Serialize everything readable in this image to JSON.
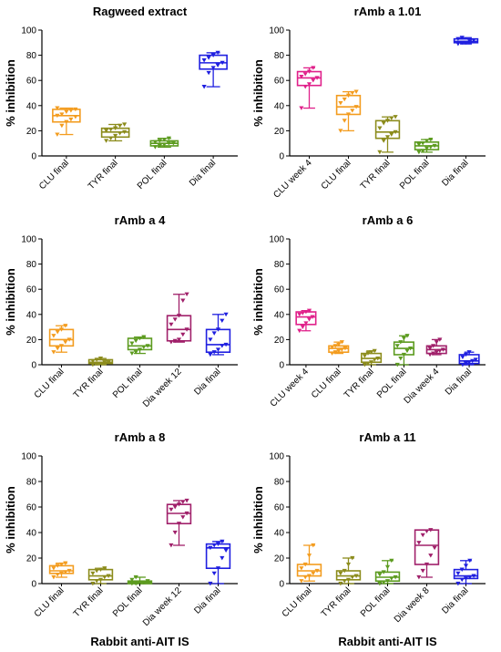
{
  "chart_data": [
    {
      "type": "box",
      "title": "Ragweed extract",
      "ylabel": "% inhibition",
      "xlabel": "",
      "ylim": [
        0,
        100
      ],
      "yticks": [
        0,
        20,
        40,
        60,
        80,
        100
      ],
      "categories": [
        "CLU final",
        "TYR final",
        "POL final",
        "Dia final"
      ],
      "colors": [
        "#F39C1F",
        "#8C8C1C",
        "#5C9B1F",
        "#1F1FE0"
      ],
      "boxes": [
        {
          "min": 17,
          "q1": 27,
          "median": 32,
          "q3": 37,
          "max": 38,
          "points": [
            17,
            24,
            27,
            29,
            31,
            32,
            33,
            35,
            36,
            37,
            38
          ]
        },
        {
          "min": 12,
          "q1": 15,
          "median": 19,
          "q3": 22,
          "max": 25,
          "points": [
            12,
            14,
            16,
            18,
            19,
            20,
            21,
            22,
            24,
            25
          ]
        },
        {
          "min": 7,
          "q1": 8,
          "median": 10,
          "q3": 12,
          "max": 14,
          "points": [
            7,
            8,
            9,
            10,
            10,
            11,
            12,
            13,
            14
          ]
        },
        {
          "min": 55,
          "q1": 69,
          "median": 74,
          "q3": 80,
          "max": 82,
          "points": [
            55,
            66,
            70,
            72,
            74,
            76,
            78,
            80,
            82
          ]
        }
      ]
    },
    {
      "type": "box",
      "title": "rAmb a 1.01",
      "ylabel": "% inhibition",
      "xlabel": "",
      "ylim": [
        0,
        100
      ],
      "yticks": [
        0,
        20,
        40,
        60,
        80,
        100
      ],
      "categories": [
        "CLU week 4",
        "CLU final",
        "TYR final",
        "POL final",
        "Dia final"
      ],
      "colors": [
        "#E0208A",
        "#F39C1F",
        "#8C8C1C",
        "#5C9B1F",
        "#1F1FE0"
      ],
      "boxes": [
        {
          "min": 38,
          "q1": 56,
          "median": 62,
          "q3": 67,
          "max": 70,
          "points": [
            38,
            55,
            57,
            60,
            62,
            63,
            65,
            67,
            70
          ]
        },
        {
          "min": 20,
          "q1": 33,
          "median": 39,
          "q3": 48,
          "max": 51,
          "points": [
            20,
            28,
            33,
            36,
            39,
            42,
            45,
            48,
            50,
            51
          ]
        },
        {
          "min": 3,
          "q1": 14,
          "median": 19,
          "q3": 28,
          "max": 31,
          "points": [
            3,
            12,
            15,
            17,
            19,
            22,
            26,
            28,
            30,
            31
          ]
        },
        {
          "min": 3,
          "q1": 5,
          "median": 8,
          "q3": 11,
          "max": 13,
          "points": [
            3,
            4,
            6,
            7,
            8,
            9,
            10,
            12,
            13
          ]
        },
        {
          "min": 89,
          "q1": 90,
          "median": 91,
          "q3": 93,
          "max": 94,
          "points": [
            89,
            90,
            90,
            91,
            92,
            93,
            94
          ]
        }
      ]
    },
    {
      "type": "box",
      "title": "rAmb a 4",
      "ylabel": "% inhibition",
      "xlabel": "",
      "ylim": [
        0,
        100
      ],
      "yticks": [
        0,
        20,
        40,
        60,
        80,
        100
      ],
      "categories": [
        "CLU final",
        "TYR final",
        "POL final",
        "Dia week 12",
        "Dia final"
      ],
      "colors": [
        "#F39C1F",
        "#8C8C1C",
        "#5C9B1F",
        "#A0206A",
        "#1F1FE0"
      ],
      "boxes": [
        {
          "min": 10,
          "q1": 15,
          "median": 20,
          "q3": 28,
          "max": 31,
          "points": [
            10,
            13,
            15,
            18,
            20,
            23,
            26,
            28,
            31
          ]
        },
        {
          "min": 0,
          "q1": 1,
          "median": 2,
          "q3": 4,
          "max": 5,
          "points": [
            0,
            1,
            1,
            2,
            2,
            3,
            4,
            5
          ]
        },
        {
          "min": 9,
          "q1": 12,
          "median": 15,
          "q3": 21,
          "max": 22,
          "points": [
            9,
            10,
            12,
            14,
            15,
            17,
            19,
            21,
            22
          ]
        },
        {
          "min": 18,
          "q1": 19,
          "median": 28,
          "q3": 39,
          "max": 56,
          "points": [
            18,
            19,
            20,
            24,
            28,
            32,
            36,
            39,
            51,
            56
          ]
        },
        {
          "min": 8,
          "q1": 10,
          "median": 16,
          "q3": 28,
          "max": 40,
          "points": [
            8,
            10,
            12,
            15,
            16,
            20,
            25,
            28,
            35,
            40
          ]
        }
      ]
    },
    {
      "type": "box",
      "title": "rAmb a 6",
      "ylabel": "% inhibition",
      "xlabel": "",
      "ylim": [
        0,
        100
      ],
      "yticks": [
        0,
        20,
        40,
        60,
        80,
        100
      ],
      "categories": [
        "CLU week 4",
        "CLU final",
        "TYR final",
        "POL final",
        "Dia week 4",
        "Dia final"
      ],
      "colors": [
        "#E0208A",
        "#F39C1F",
        "#8C8C1C",
        "#5C9B1F",
        "#A0206A",
        "#1F1FE0"
      ],
      "boxes": [
        {
          "min": 27,
          "q1": 32,
          "median": 38,
          "q3": 42,
          "max": 43,
          "points": [
            27,
            30,
            33,
            36,
            38,
            40,
            41,
            42,
            43
          ]
        },
        {
          "min": 9,
          "q1": 10,
          "median": 13,
          "q3": 15,
          "max": 18,
          "points": [
            9,
            10,
            11,
            12,
            13,
            14,
            15,
            16,
            18
          ]
        },
        {
          "min": 0,
          "q1": 2,
          "median": 5,
          "q3": 9,
          "max": 11,
          "points": [
            0,
            1,
            2,
            4,
            5,
            7,
            9,
            10,
            11
          ]
        },
        {
          "min": 0,
          "q1": 8,
          "median": 13,
          "q3": 18,
          "max": 23,
          "points": [
            0,
            5,
            8,
            11,
            13,
            15,
            18,
            21,
            23
          ]
        },
        {
          "min": 8,
          "q1": 9,
          "median": 12,
          "q3": 15,
          "max": 20,
          "points": [
            8,
            9,
            10,
            11,
            12,
            13,
            15,
            18,
            20
          ]
        },
        {
          "min": 0,
          "q1": 1,
          "median": 3,
          "q3": 8,
          "max": 10,
          "points": [
            0,
            1,
            2,
            3,
            4,
            6,
            8,
            10
          ]
        }
      ]
    },
    {
      "type": "box",
      "title": "rAmb a 8",
      "ylabel": "% inhibition",
      "xlabel": "Rabbit anti-AIT IS",
      "ylim": [
        0,
        100
      ],
      "yticks": [
        0,
        20,
        40,
        60,
        80,
        100
      ],
      "categories": [
        "CLU final",
        "TYR final",
        "POL final",
        "Dia week 12",
        "Dia final"
      ],
      "colors": [
        "#F39C1F",
        "#8C8C1C",
        "#5C9B1F",
        "#A0206A",
        "#1F1FE0"
      ],
      "boxes": [
        {
          "min": 5,
          "q1": 8,
          "median": 10,
          "q3": 14,
          "max": 16,
          "points": [
            5,
            7,
            8,
            9,
            10,
            12,
            14,
            15,
            16
          ]
        },
        {
          "min": 0,
          "q1": 3,
          "median": 6,
          "q3": 11,
          "max": 12,
          "points": [
            0,
            2,
            3,
            5,
            6,
            8,
            10,
            11,
            12
          ]
        },
        {
          "min": 0,
          "q1": 0,
          "median": 1,
          "q3": 2,
          "max": 5,
          "points": [
            0,
            0,
            1,
            1,
            2,
            3,
            5
          ]
        },
        {
          "min": 30,
          "q1": 47,
          "median": 55,
          "q3": 62,
          "max": 65,
          "points": [
            30,
            40,
            47,
            52,
            55,
            58,
            60,
            62,
            64,
            65
          ]
        },
        {
          "min": 0,
          "q1": 12,
          "median": 28,
          "q3": 31,
          "max": 33,
          "points": [
            0,
            8,
            12,
            20,
            26,
            28,
            30,
            31,
            33
          ]
        }
      ]
    },
    {
      "type": "box",
      "title": "rAmb a 11",
      "ylabel": "% inhibition",
      "xlabel": "Rabbit anti-AIT IS",
      "ylim": [
        0,
        100
      ],
      "yticks": [
        0,
        20,
        40,
        60,
        80,
        100
      ],
      "categories": [
        "CLU final",
        "TYR final",
        "POL final",
        "Dia week 8",
        "Dia final"
      ],
      "colors": [
        "#F39C1F",
        "#8C8C1C",
        "#5C9B1F",
        "#A0206A",
        "#1F1FE0"
      ],
      "boxes": [
        {
          "min": 2,
          "q1": 6,
          "median": 10,
          "q3": 15,
          "max": 30,
          "points": [
            2,
            5,
            6,
            8,
            10,
            12,
            15,
            22,
            30
          ]
        },
        {
          "min": 0,
          "q1": 3,
          "median": 6,
          "q3": 10,
          "max": 20,
          "points": [
            0,
            2,
            3,
            5,
            6,
            8,
            10,
            15,
            20
          ]
        },
        {
          "min": 0,
          "q1": 2,
          "median": 5,
          "q3": 9,
          "max": 18,
          "points": [
            0,
            1,
            2,
            4,
            5,
            7,
            9,
            13,
            18
          ]
        },
        {
          "min": 5,
          "q1": 15,
          "median": 30,
          "q3": 42,
          "max": 42,
          "points": [
            5,
            10,
            15,
            22,
            28,
            32,
            38,
            41,
            42
          ]
        },
        {
          "min": 0,
          "q1": 4,
          "median": 6,
          "q3": 11,
          "max": 18,
          "points": [
            0,
            3,
            4,
            5,
            6,
            8,
            11,
            14,
            18
          ]
        }
      ]
    }
  ]
}
